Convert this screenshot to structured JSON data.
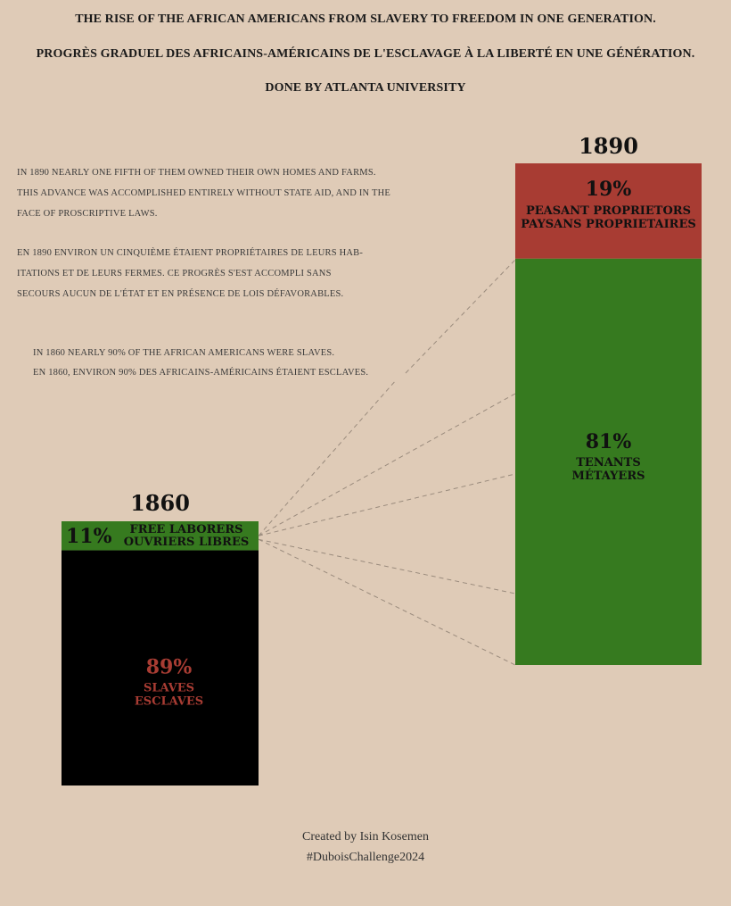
{
  "header": {
    "title_en": "THE RISE OF THE AFRICAN AMERICANS FROM SLAVERY TO FREEDOM IN ONE GENERATION.",
    "title_fr": "PROGRÈS GRADUEL DES AFRICAINS-AMÉRICAINS DE L'ESCLAVAGE À LA LIBERTÉ EN UNE GÉNÉRATION.",
    "subtitle": "DONE BY ATLANTA UNIVERSITY"
  },
  "notes": {
    "n1890_en": [
      "IN 1890 NEARLY ONE FIFTH OF THEM OWNED THEIR OWN HOMES AND FARMS.",
      "THIS ADVANCE WAS ACCOMPLISHED ENTIRELY WITHOUT STATE AID, AND IN THE",
      "FACE OF PROSCRIPTIVE LAWS."
    ],
    "n1890_fr": [
      "EN 1890 ENVIRON UN CINQUIÈME ÉTAIENT PROPRIÉTAIRES DE LEURS HAB-",
      "ITATIONS ET DE LEURS FERMES. CE PROGRÈS S'EST ACCOMPLI SANS",
      "SECOURS AUCUN DE L'ÉTAT ET EN PRÉSENCE DE LOIS DÉFAVORABLES."
    ],
    "n1860": [
      "IN 1860 NEARLY 90% OF THE AFRICAN AMERICANS WERE SLAVES.",
      "EN 1860, ENVIRON 90% DES AFRICAINS-AMÉRICAINS ÉTAIENT ESCLAVES."
    ]
  },
  "chart_data": {
    "type": "bar",
    "stacked": true,
    "bars": [
      {
        "year": "1860",
        "segments": [
          {
            "value": 11,
            "label": "11%",
            "name_en": "FREE LABORERS",
            "name_fr": "OUVRIERS LIBRES",
            "color": "#367a1f"
          },
          {
            "value": 89,
            "label": "89%",
            "name_en": "SLAVES",
            "name_fr": "ESCLAVES",
            "color": "#000000"
          }
        ]
      },
      {
        "year": "1890",
        "segments": [
          {
            "value": 19,
            "label": "19%",
            "name_en": "PEASANT PROPRIETORS",
            "name_fr": "PAYSANS PROPRIETAIRES",
            "color": "#a83c33"
          },
          {
            "value": 81,
            "label": "81%",
            "name_en": "TENANTS",
            "name_fr": "MÉTAYERS",
            "color": "#367a1f"
          }
        ]
      }
    ],
    "label_colors": {
      "on_dark": "#a83c33",
      "on_color": "#111111"
    },
    "connector_color": "#9a8b7d"
  },
  "footer": {
    "line1": "Created by Isin Kosemen",
    "line2": "#DuboisChallenge2024"
  }
}
